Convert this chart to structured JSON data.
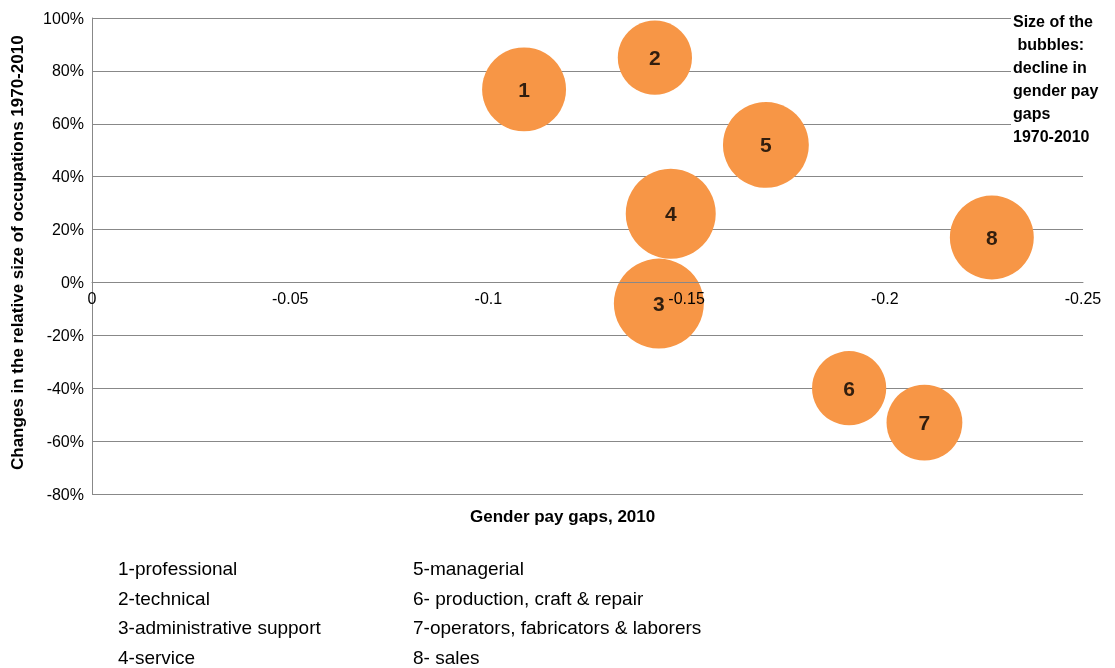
{
  "chart_data": {
    "type": "bubble",
    "xlabel": "Gender pay gaps, 2010",
    "ylabel": "Changes in the relative size of occupations 1970-2010",
    "x": [
      -0.109,
      -0.142,
      -0.143,
      -0.146,
      -0.17,
      -0.191,
      -0.21,
      -0.227
    ],
    "series": [
      {
        "color": "#f79646",
        "values": [
          73,
          85,
          -8,
          26,
          52,
          -40,
          -53,
          17
        ],
        "sizes": [
          0.87,
          0.68,
          1,
          1,
          0.91,
          0.68,
          0.71,
          0.87
        ]
      }
    ],
    "xlim": [
      0,
      -0.25
    ],
    "xticks": [
      0,
      -0.05,
      -0.1,
      -0.15,
      -0.2,
      -0.25
    ],
    "ylim": [
      -80,
      100
    ],
    "yticks": [
      {
        "value": -80,
        "label": "-80%"
      },
      {
        "value": -60,
        "label": "-60%"
      },
      {
        "value": -40,
        "label": "-40%"
      },
      {
        "value": -20,
        "label": "-20%"
      },
      {
        "value": 0,
        "label": "0%"
      },
      {
        "value": 20,
        "label": "20%"
      },
      {
        "value": 40,
        "label": "40%"
      },
      {
        "value": 60,
        "label": "60%"
      },
      {
        "value": 80,
        "label": "80%"
      },
      {
        "value": 100,
        "label": "100%"
      }
    ],
    "grid": "y",
    "annotations": [
      "Size of the bubbles: decline in gender pay gaps 1970-2010",
      {
        "text": "1",
        "x": -0.109,
        "y": 73
      },
      {
        "text": "2",
        "x": -0.142,
        "y": 85
      },
      {
        "text": "3",
        "x": -0.143,
        "y": -8
      },
      {
        "text": "4",
        "x": -0.146,
        "y": 26
      },
      {
        "text": "5",
        "x": -0.17,
        "y": 52
      },
      {
        "text": "6",
        "x": -0.191,
        "y": -40
      },
      {
        "text": "7",
        "x": -0.21,
        "y": -53
      },
      {
        "text": "8",
        "x": -0.227,
        "y": 17
      },
      "1-professional",
      "2-technical",
      "3-administrative support",
      "4-service",
      "5-managerial",
      "6- production, craft & repair",
      "7-operators, fabricators & laborers",
      "8- sales"
    ]
  }
}
